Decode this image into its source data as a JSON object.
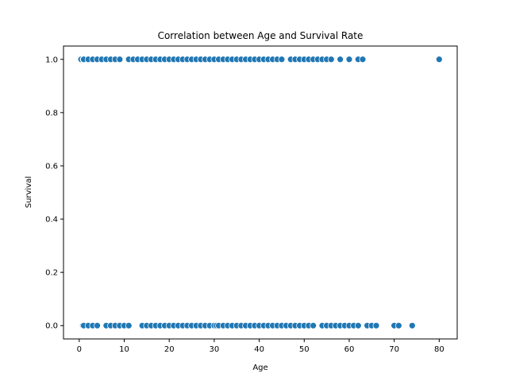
{
  "chart_data": {
    "type": "scatter",
    "title": "Correlation between Age and Survival Rate",
    "xlabel": "Age",
    "ylabel": "Survival",
    "xlim": [
      -3.5,
      84
    ],
    "ylim": [
      -0.05,
      1.05
    ],
    "xticks": [
      0,
      10,
      20,
      30,
      40,
      50,
      60,
      70,
      80
    ],
    "yticks": [
      0.0,
      0.2,
      0.4,
      0.6,
      0.8,
      1.0
    ],
    "xtick_labels": [
      "0",
      "10",
      "20",
      "30",
      "40",
      "50",
      "60",
      "70",
      "80"
    ],
    "ytick_labels": [
      "0.0",
      "0.2",
      "0.4",
      "0.6",
      "0.8",
      "1.0"
    ],
    "grid": false,
    "marker_color": "#1f77b4",
    "marker_edge": "#ffffff",
    "series": [
      {
        "points": [
          [
            0.4,
            1
          ],
          [
            0.9,
            1
          ],
          [
            1,
            1
          ],
          [
            2,
            1
          ],
          [
            3,
            1
          ],
          [
            4,
            1
          ],
          [
            5,
            1
          ],
          [
            6,
            1
          ],
          [
            7,
            1
          ],
          [
            8,
            1
          ],
          [
            9,
            1
          ],
          [
            11,
            1
          ],
          [
            12,
            1
          ],
          [
            13,
            1
          ],
          [
            14,
            1
          ],
          [
            15,
            1
          ],
          [
            16,
            1
          ],
          [
            17,
            1
          ],
          [
            18,
            1
          ],
          [
            19,
            1
          ],
          [
            20,
            1
          ],
          [
            21,
            1
          ],
          [
            22,
            1
          ],
          [
            23,
            1
          ],
          [
            24,
            1
          ],
          [
            25,
            1
          ],
          [
            26,
            1
          ],
          [
            27,
            1
          ],
          [
            28,
            1
          ],
          [
            29,
            1
          ],
          [
            30,
            1
          ],
          [
            31,
            1
          ],
          [
            32,
            1
          ],
          [
            33,
            1
          ],
          [
            34,
            1
          ],
          [
            35,
            1
          ],
          [
            36,
            1
          ],
          [
            37,
            1
          ],
          [
            38,
            1
          ],
          [
            39,
            1
          ],
          [
            40,
            1
          ],
          [
            41,
            1
          ],
          [
            42,
            1
          ],
          [
            43,
            1
          ],
          [
            44,
            1
          ],
          [
            45,
            1
          ],
          [
            47,
            1
          ],
          [
            48,
            1
          ],
          [
            49,
            1
          ],
          [
            50,
            1
          ],
          [
            51,
            1
          ],
          [
            52,
            1
          ],
          [
            53,
            1
          ],
          [
            54,
            1
          ],
          [
            55,
            1
          ],
          [
            56,
            1
          ],
          [
            58,
            1
          ],
          [
            60,
            1
          ],
          [
            62,
            1
          ],
          [
            63,
            1
          ],
          [
            80,
            1
          ],
          [
            0.8,
            0
          ],
          [
            1,
            0
          ],
          [
            2,
            0
          ],
          [
            3,
            0
          ],
          [
            4,
            0
          ],
          [
            6,
            0
          ],
          [
            7,
            0
          ],
          [
            8,
            0
          ],
          [
            9,
            0
          ],
          [
            10,
            0
          ],
          [
            11,
            0
          ],
          [
            14,
            0
          ],
          [
            15,
            0
          ],
          [
            16,
            0
          ],
          [
            17,
            0
          ],
          [
            18,
            0
          ],
          [
            19,
            0
          ],
          [
            20,
            0
          ],
          [
            21,
            0
          ],
          [
            22,
            0
          ],
          [
            23,
            0
          ],
          [
            24,
            0
          ],
          [
            25,
            0
          ],
          [
            26,
            0
          ],
          [
            27,
            0
          ],
          [
            28,
            0
          ],
          [
            29,
            0
          ],
          [
            30,
            0
          ],
          [
            30.5,
            0
          ],
          [
            31,
            0
          ],
          [
            32,
            0
          ],
          [
            33,
            0
          ],
          [
            34,
            0
          ],
          [
            35,
            0
          ],
          [
            36,
            0
          ],
          [
            37,
            0
          ],
          [
            38,
            0
          ],
          [
            39,
            0
          ],
          [
            40,
            0
          ],
          [
            41,
            0
          ],
          [
            42,
            0
          ],
          [
            43,
            0
          ],
          [
            44,
            0
          ],
          [
            45,
            0
          ],
          [
            46,
            0
          ],
          [
            47,
            0
          ],
          [
            48,
            0
          ],
          [
            49,
            0
          ],
          [
            50,
            0
          ],
          [
            51,
            0
          ],
          [
            52,
            0
          ],
          [
            54,
            0
          ],
          [
            55,
            0
          ],
          [
            56,
            0
          ],
          [
            57,
            0
          ],
          [
            58,
            0
          ],
          [
            59,
            0
          ],
          [
            60,
            0
          ],
          [
            61,
            0
          ],
          [
            62,
            0
          ],
          [
            64,
            0
          ],
          [
            65,
            0
          ],
          [
            66,
            0
          ],
          [
            70,
            0
          ],
          [
            71,
            0
          ],
          [
            74,
            0
          ]
        ]
      }
    ]
  }
}
